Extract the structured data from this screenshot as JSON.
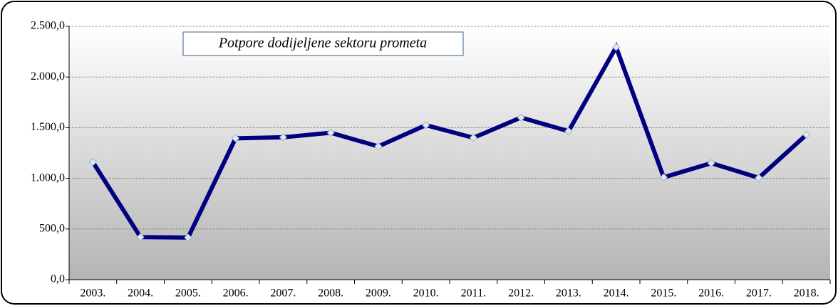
{
  "chart_data": {
    "type": "line",
    "title": "Potpore dodijeljene sektoru prometa",
    "categories": [
      "2003.",
      "2004.",
      "2005.",
      "2006.",
      "2007.",
      "2008.",
      "2009.",
      "2010.",
      "2011.",
      "2012.",
      "2013.",
      "2014.",
      "2015.",
      "2016.",
      "2017.",
      "2018."
    ],
    "series": [
      {
        "name": "Potpore",
        "color": "#000080",
        "marker_color": "#dbe8f5",
        "values": [
          1160,
          420,
          415,
          1395,
          1405,
          1450,
          1315,
          1525,
          1400,
          1600,
          1465,
          2295,
          1010,
          1150,
          1005,
          1430
        ]
      }
    ],
    "ylim": [
      0,
      2500
    ],
    "yticks": [
      {
        "value": 0,
        "label": "0,0"
      },
      {
        "value": 500,
        "label": "500,0"
      },
      {
        "value": 1000,
        "label": "1.000,0"
      },
      {
        "value": 1500,
        "label": "1.500,0"
      },
      {
        "value": 2000,
        "label": "2.000,0"
      },
      {
        "value": 2500,
        "label": "2.500,0"
      }
    ],
    "grid": true
  }
}
